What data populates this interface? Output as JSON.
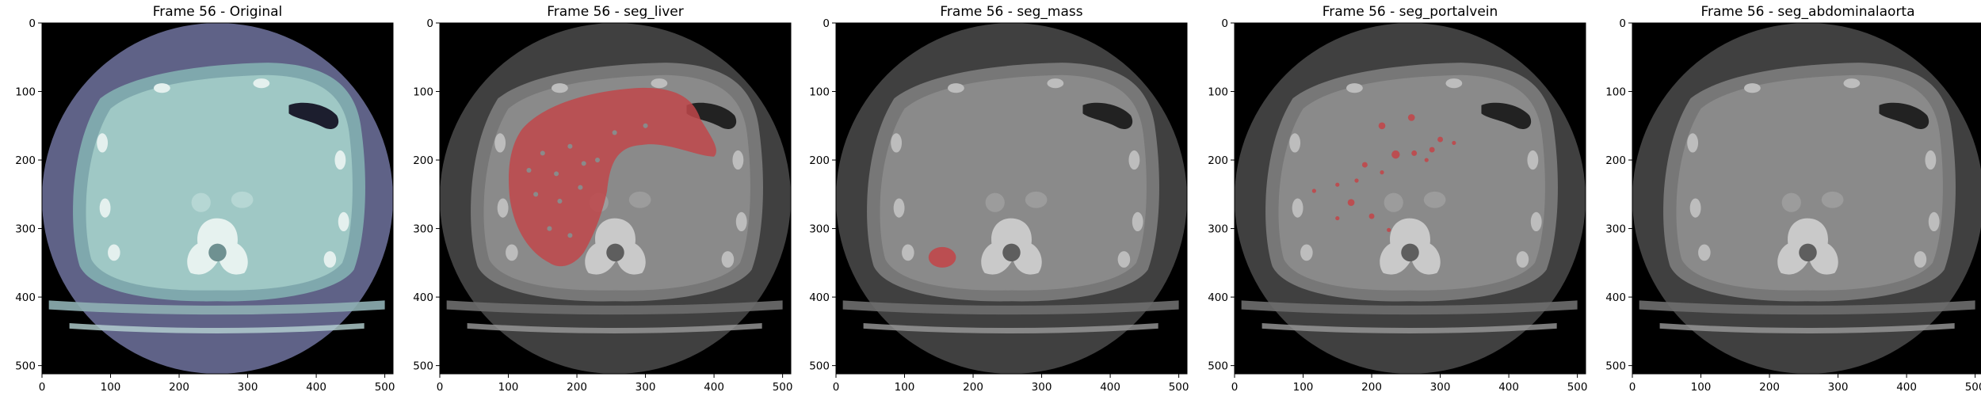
{
  "figure": {
    "colors": {
      "background": "#ffffff",
      "scan_original": "#9fc8c5",
      "scan_gray": "#8a8a8a",
      "field_of_view_original": "#5f6287",
      "field_of_view_gray": "#404040",
      "mask_overlay": "#c0474a"
    },
    "panels": [
      {
        "title": "Frame 56 - Original",
        "colormap": "bone",
        "overlay": "none"
      },
      {
        "title": "Frame 56 - seg_liver",
        "colormap": "gray",
        "overlay": "liver"
      },
      {
        "title": "Frame 56 - seg_mass",
        "colormap": "gray",
        "overlay": "mass"
      },
      {
        "title": "Frame 56 - seg_portalvein",
        "colormap": "gray",
        "overlay": "portalvein"
      },
      {
        "title": "Frame 56 - seg_abdominalaorta",
        "colormap": "gray",
        "overlay": "none"
      }
    ],
    "axes": {
      "xlim": [
        0,
        512
      ],
      "ylim": [
        512,
        0
      ],
      "x_ticks": [
        "0",
        "100",
        "200",
        "300",
        "400",
        "500"
      ],
      "y_ticks": [
        "0",
        "100",
        "200",
        "300",
        "400",
        "500"
      ]
    }
  }
}
